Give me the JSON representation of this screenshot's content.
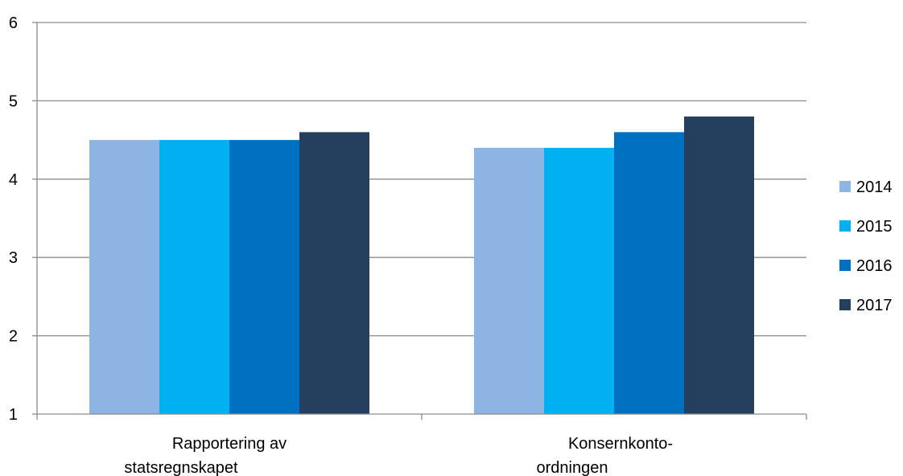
{
  "chart_data": {
    "type": "bar",
    "title": "",
    "xlabel": "",
    "ylabel": "",
    "ylim": [
      1,
      6
    ],
    "yticks": [
      1,
      2,
      3,
      4,
      5,
      6
    ],
    "grid": true,
    "legend_position": "right",
    "categories": [
      [
        "Rapportering av",
        "statsregnskapet"
      ],
      [
        "Konsernkonto-",
        "ordningen"
      ]
    ],
    "series": [
      {
        "name": "2014",
        "color": "#8EB4E3",
        "values": [
          4.5,
          4.4
        ]
      },
      {
        "name": "2015",
        "color": "#00B0F0",
        "values": [
          4.5,
          4.4
        ]
      },
      {
        "name": "2016",
        "color": "#0070C0",
        "values": [
          4.5,
          4.6
        ]
      },
      {
        "name": "2017",
        "color": "#253F5F",
        "values": [
          4.6,
          4.8
        ]
      }
    ]
  }
}
